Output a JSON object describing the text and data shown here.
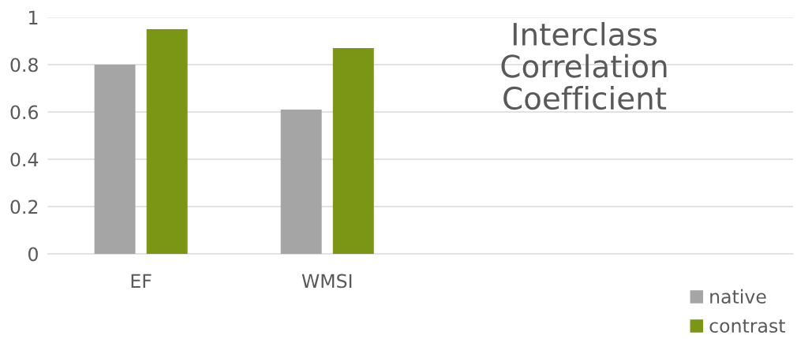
{
  "chart_data": {
    "type": "bar",
    "title": "Interclass\nCorrelation\nCoefficient",
    "categories": [
      "EF",
      "WMSI",
      null,
      null
    ],
    "series": [
      {
        "name": "native",
        "color": "#a5a5a5",
        "values": [
          0.8,
          0.61,
          null,
          null
        ]
      },
      {
        "name": "contrast",
        "color": "#7a9614",
        "values": [
          0.95,
          0.87,
          null,
          null
        ]
      }
    ],
    "ylim": [
      0,
      1
    ],
    "yticks": [
      0,
      0.2,
      0.4,
      0.6,
      0.8,
      1
    ],
    "grid": "y",
    "legend": "bottom right"
  }
}
